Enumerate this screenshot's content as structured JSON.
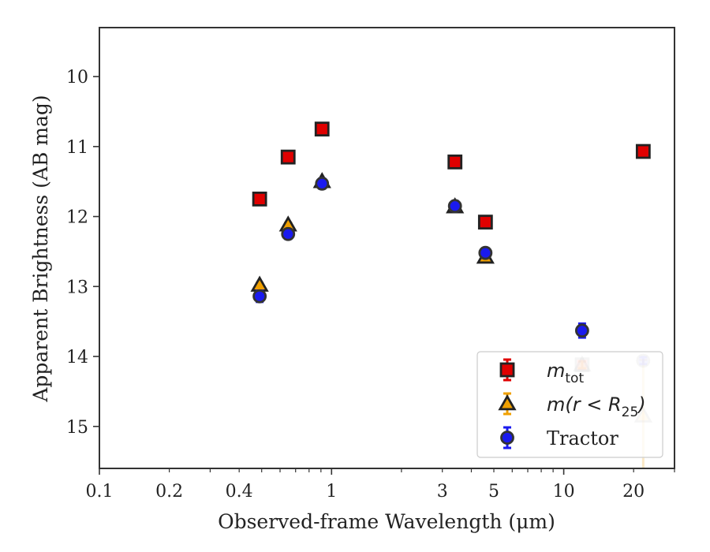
{
  "chart_data": {
    "type": "scatter",
    "xlabel": "Observed-frame Wavelength (μm)",
    "ylabel": "Apparent Brightness (AB mag)",
    "xscale": "log",
    "xlim": [
      0.1,
      30
    ],
    "ylim": [
      15.6,
      9.3
    ],
    "y_inverted": true,
    "xticks": [
      {
        "value": 0.1,
        "label": "0.1"
      },
      {
        "value": 0.2,
        "label": "0.2"
      },
      {
        "value": 0.4,
        "label": "0.4"
      },
      {
        "value": 1,
        "label": "1"
      },
      {
        "value": 3,
        "label": "3"
      },
      {
        "value": 5,
        "label": "5"
      },
      {
        "value": 10,
        "label": "10"
      },
      {
        "value": 20,
        "label": "20"
      }
    ],
    "yticks": [
      {
        "value": 10,
        "label": "10"
      },
      {
        "value": 11,
        "label": "11"
      },
      {
        "value": 12,
        "label": "12"
      },
      {
        "value": 13,
        "label": "13"
      },
      {
        "value": 14,
        "label": "14"
      },
      {
        "value": 15,
        "label": "15"
      }
    ],
    "grid": false,
    "legend": {
      "position": "bottom-right",
      "entries": [
        {
          "label": "m",
          "subscript": "tot",
          "label_suffix": "",
          "italic": true
        },
        {
          "label": "m(r < R",
          "subscript": "25",
          "label_suffix": ")",
          "italic": true
        },
        {
          "label": "Tractor",
          "subscript": "",
          "label_suffix": "",
          "italic": false
        }
      ]
    },
    "series": [
      {
        "name": "m_tot",
        "marker": "square",
        "color": "#e00000",
        "edge_color": "#222222",
        "x": [
          0.49,
          0.65,
          0.91,
          3.4,
          4.6,
          12.0,
          22.0
        ],
        "y": [
          11.75,
          11.15,
          10.75,
          11.22,
          12.08,
          14.12,
          11.07
        ],
        "yerr": [
          0.03,
          0.03,
          0.03,
          0.03,
          0.03,
          0.05,
          0.03
        ],
        "faded": [
          false,
          false,
          false,
          false,
          false,
          true,
          false
        ]
      },
      {
        "name": "m(r<R25)",
        "marker": "triangle",
        "color": "#f0a000",
        "edge_color": "#222222",
        "x": [
          0.49,
          0.65,
          0.91,
          3.4,
          4.6,
          12.0,
          22.0
        ],
        "y": [
          12.98,
          12.12,
          11.5,
          11.86,
          12.58,
          14.12,
          14.85
        ],
        "yerr": [
          0.03,
          0.03,
          0.03,
          0.03,
          0.03,
          0.05,
          0.8
        ],
        "faded": [
          false,
          false,
          false,
          false,
          false,
          true,
          true
        ]
      },
      {
        "name": "Tractor",
        "marker": "circle",
        "color": "#1a1aee",
        "edge_color": "#333333",
        "x": [
          0.49,
          0.65,
          0.91,
          3.4,
          4.6,
          12.0,
          22.0
        ],
        "y": [
          13.14,
          12.25,
          11.53,
          11.85,
          12.52,
          13.63,
          14.06
        ],
        "yerr": [
          0.08,
          0.07,
          0.07,
          0.07,
          0.07,
          0.1,
          0.05
        ],
        "faded": [
          false,
          false,
          false,
          false,
          false,
          false,
          true
        ]
      }
    ]
  }
}
